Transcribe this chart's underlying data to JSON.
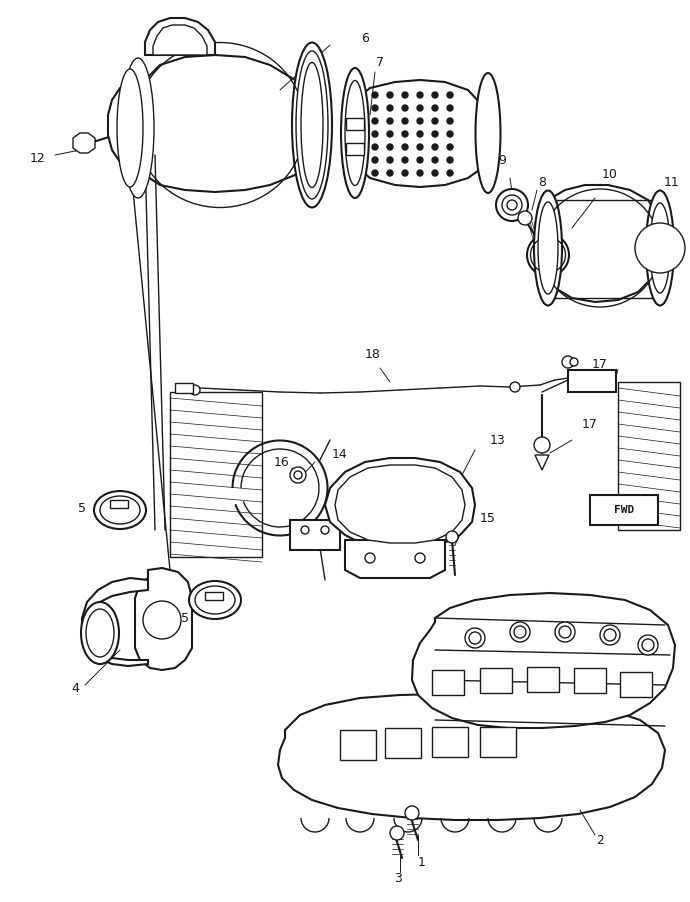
{
  "background_color": "#ffffff",
  "line_color": "#1a1a1a",
  "fig_width": 6.9,
  "fig_height": 9.02,
  "dpi": 100,
  "parts": {
    "housing_color": "#ffffff",
    "filter_color": "#ffffff"
  }
}
